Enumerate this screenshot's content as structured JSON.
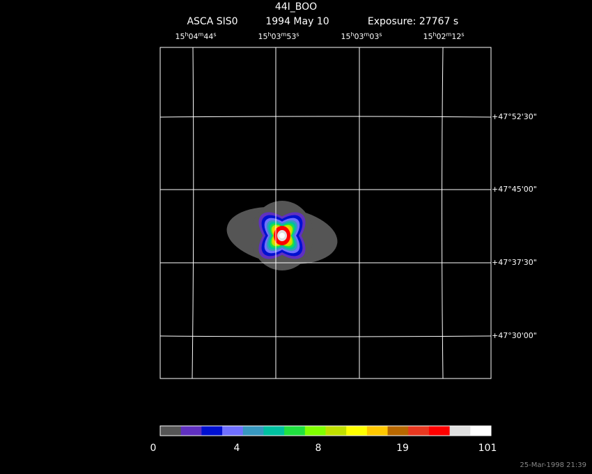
{
  "title": "44I_BOO",
  "subtitle": [
    "ASCA SIS0",
    "1994 May 10",
    "Exposure: 27767 s"
  ],
  "ra_labels": [
    [
      "15",
      "h",
      "04",
      "m",
      "44",
      "s"
    ],
    [
      "15",
      "h",
      "03",
      "m",
      "53",
      "s"
    ],
    [
      "15",
      "h",
      "03",
      "m",
      "03",
      "s"
    ],
    [
      "15",
      "h",
      "02",
      "m",
      "12",
      "s"
    ]
  ],
  "dec_labels": [
    "+47°52'30\"",
    "+47°45'00\"",
    "+47°37'30\"",
    "+47°30'00\""
  ],
  "colorbar": {
    "colors": [
      "#555555",
      "#6030c0",
      "#0010d0",
      "#7070ff",
      "#3898c0",
      "#00c0a0",
      "#20e040",
      "#80ff00",
      "#c0e000",
      "#ffff00",
      "#ffc800",
      "#b86800",
      "#e83820",
      "#ff0000",
      "#e0e0e0",
      "#ffffff"
    ],
    "labels": [
      "0",
      "4",
      "8",
      "19",
      "101"
    ]
  },
  "footer": "25-Mar-1998 21:39"
}
